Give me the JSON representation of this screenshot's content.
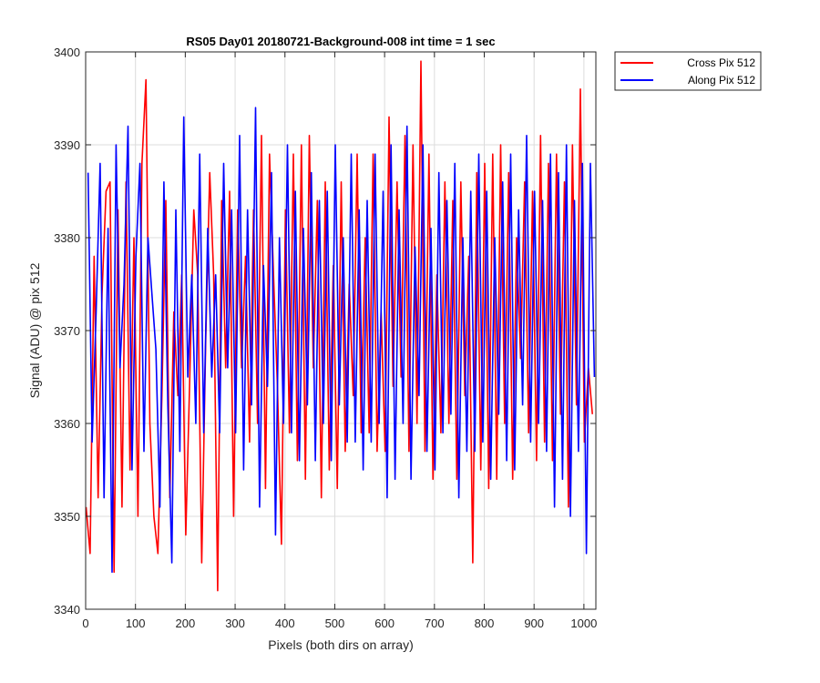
{
  "chart_data": {
    "type": "line",
    "title": "RS05 Day01 20180721-Background-008 int time = 1 sec",
    "xlabel": "Pixels (both dirs on array)",
    "ylabel": "Signal (ADU) @ pix 512",
    "xlim": [
      0,
      1024
    ],
    "ylim": [
      3340,
      3400
    ],
    "xticks": [
      0,
      100,
      200,
      300,
      400,
      500,
      600,
      700,
      800,
      900,
      1000
    ],
    "yticks": [
      3340,
      3350,
      3360,
      3370,
      3380,
      3390,
      3400
    ],
    "grid": true,
    "legend_position": "outside top-right",
    "series": [
      {
        "name": "Cross Pix 512",
        "color": "#ff0000",
        "x_start": 1,
        "x_step": 8,
        "values": [
          3351,
          3346,
          3378,
          3352,
          3374,
          3385,
          3386,
          3344,
          3383,
          3351,
          3386,
          3355,
          3380,
          3350,
          3388,
          3397,
          3360,
          3350,
          3346,
          3363,
          3384,
          3352,
          3372,
          3363,
          3376,
          3348,
          3365,
          3383,
          3376,
          3345,
          3369,
          3387,
          3376,
          3342,
          3384,
          3366,
          3385,
          3350,
          3383,
          3366,
          3378,
          3358,
          3383,
          3360,
          3391,
          3353,
          3389,
          3376,
          3364,
          3347,
          3383,
          3359,
          3389,
          3356,
          3390,
          3354,
          3391,
          3366,
          3384,
          3352,
          3386,
          3355,
          3377,
          3353,
          3386,
          3357,
          3375,
          3363,
          3389,
          3359,
          3380,
          3359,
          3389,
          3357,
          3372,
          3357,
          3393,
          3364,
          3386,
          3365,
          3391,
          3357,
          3390,
          3360,
          3399,
          3357,
          3389,
          3354,
          3376,
          3359,
          3386,
          3360,
          3384,
          3354,
          3386,
          3363,
          3378,
          3345,
          3387,
          3355,
          3388,
          3353,
          3389,
          3354,
          3390,
          3360,
          3387,
          3354,
          3380,
          3367,
          3386,
          3359,
          3385,
          3356,
          3391,
          3358,
          3388,
          3356,
          3389,
          3361,
          3386,
          3351,
          3390,
          3362,
          3396,
          3358,
          3366,
          3361
        ]
      },
      {
        "name": "Along Pix 512",
        "color": "#0000ff",
        "x_start": 5,
        "x_step": 8,
        "values": [
          3387,
          3358,
          3372,
          3388,
          3352,
          3381,
          3344,
          3390,
          3366,
          3375,
          3392,
          3355,
          3378,
          3388,
          3357,
          3380,
          3374,
          3368,
          3351,
          3386,
          3362,
          3345,
          3383,
          3357,
          3393,
          3365,
          3376,
          3360,
          3389,
          3359,
          3381,
          3365,
          3376,
          3359,
          3388,
          3366,
          3383,
          3359,
          3391,
          3355,
          3383,
          3362,
          3394,
          3351,
          3377,
          3364,
          3387,
          3348,
          3380,
          3360,
          3390,
          3359,
          3385,
          3356,
          3381,
          3362,
          3387,
          3356,
          3384,
          3360,
          3385,
          3356,
          3390,
          3362,
          3380,
          3358,
          3389,
          3358,
          3383,
          3355,
          3384,
          3358,
          3389,
          3360,
          3385,
          3352,
          3390,
          3354,
          3383,
          3360,
          3392,
          3354,
          3379,
          3363,
          3390,
          3357,
          3381,
          3355,
          3387,
          3359,
          3384,
          3361,
          3388,
          3352,
          3380,
          3357,
          3385,
          3357,
          3389,
          3358,
          3385,
          3354,
          3380,
          3361,
          3386,
          3356,
          3389,
          3355,
          3383,
          3362,
          3391,
          3358,
          3385,
          3360,
          3384,
          3357,
          3389,
          3351,
          3387,
          3354,
          3390,
          3350,
          3384,
          3357,
          3388,
          3346,
          3388,
          3365
        ]
      }
    ]
  }
}
